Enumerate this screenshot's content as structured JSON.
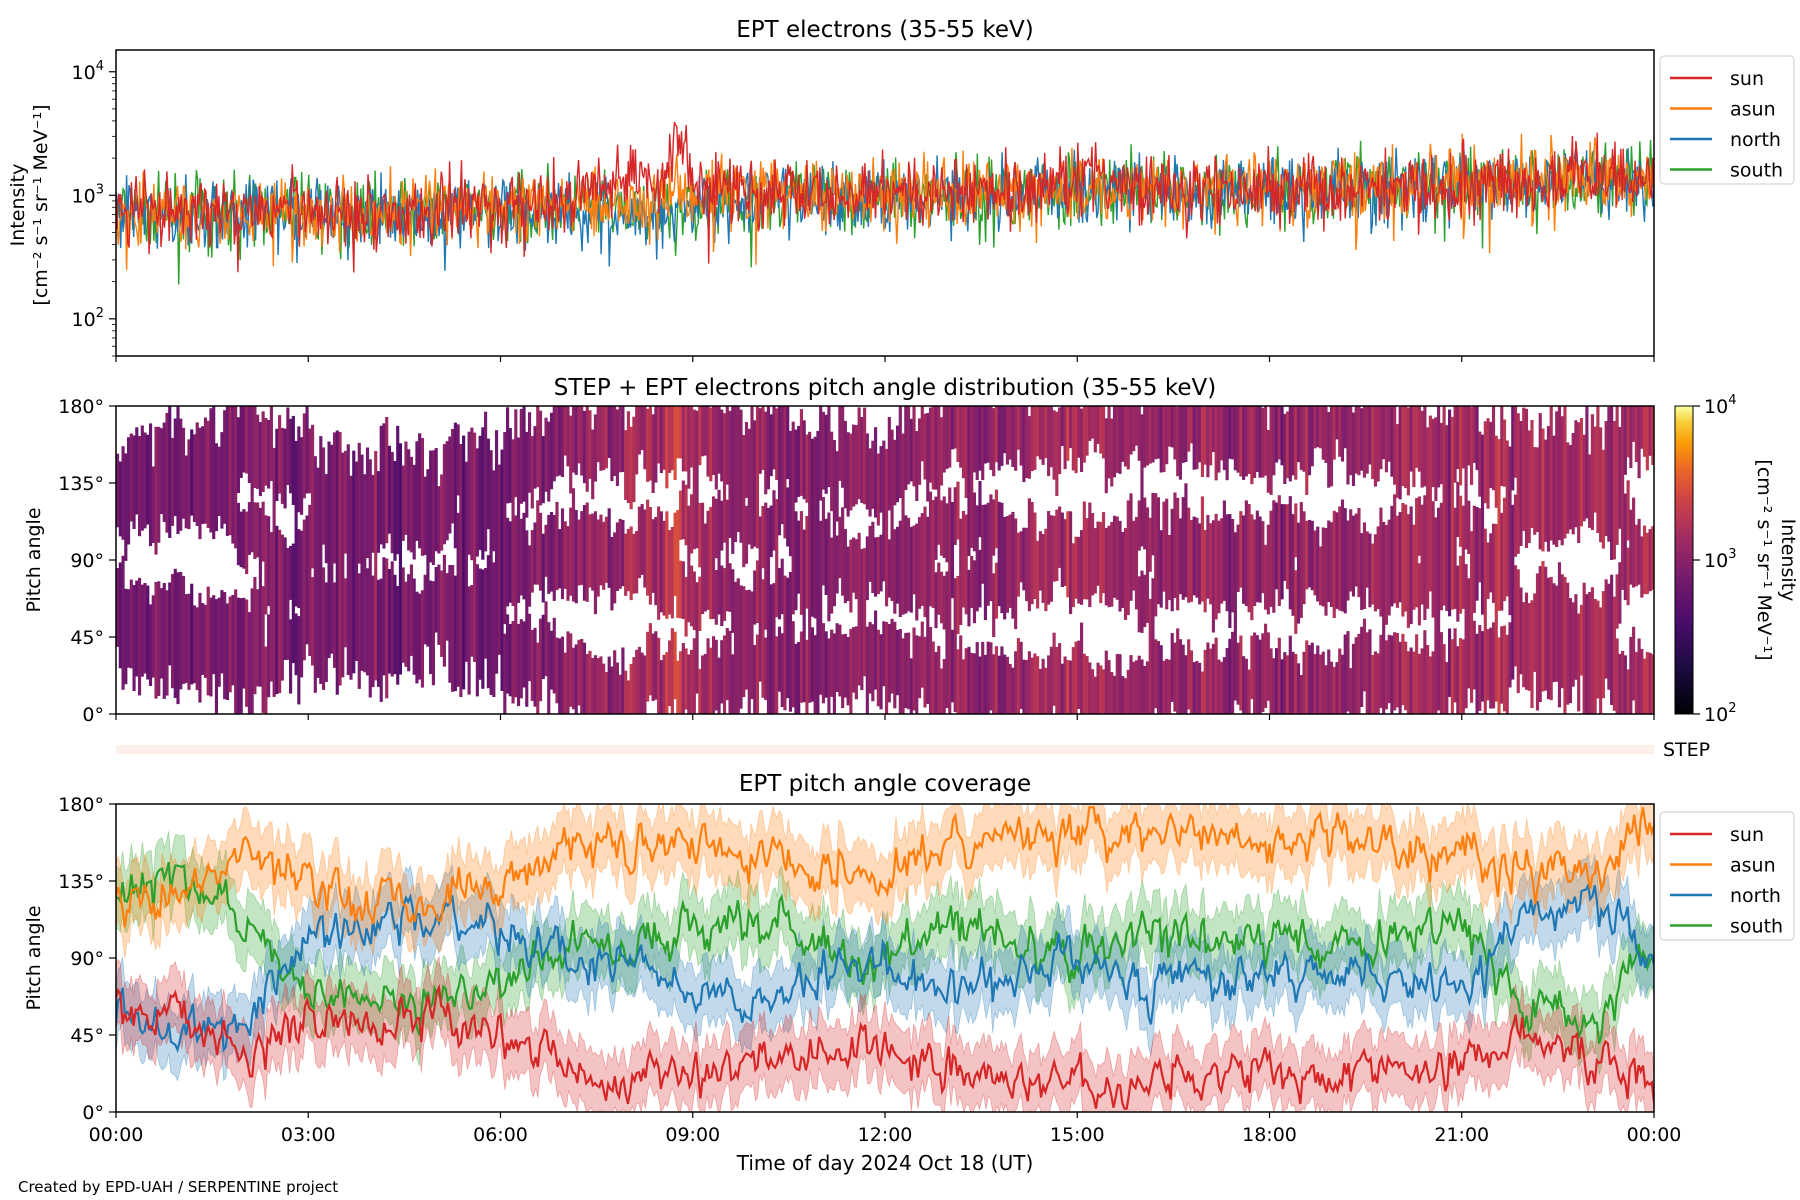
{
  "figure": {
    "footer": "Created by EPD-UAH / SERPENTINE project",
    "xlabel": "Time of day 2024 Oct 18 (UT)",
    "xticks": [
      "00:00",
      "03:00",
      "06:00",
      "09:00",
      "12:00",
      "15:00",
      "18:00",
      "21:00",
      "00:00"
    ]
  },
  "colors": {
    "sun": "#d62728",
    "asun": "#ff7f0e",
    "north": "#1f77b4",
    "south": "#2ca02c"
  },
  "chart_data": [
    {
      "type": "line",
      "title": "EPT electrons (35-55 keV)",
      "ylabel_line1": "Intensity",
      "ylabel_line2": "[cm⁻² s⁻¹ sr⁻¹ MeV⁻¹]",
      "yscale": "log",
      "ylim": [
        50,
        15000
      ],
      "yticks": [
        {
          "value": 100,
          "base": "10",
          "exp": "2"
        },
        {
          "value": 1000,
          "base": "10",
          "exp": "3"
        },
        {
          "value": 10000,
          "base": "10",
          "exp": "4"
        }
      ],
      "xlim_hours": [
        0,
        24
      ],
      "x_hours": [
        0,
        1,
        2,
        3,
        4,
        5,
        6,
        7,
        7.5,
        8,
        8.5,
        8.75,
        9,
        10,
        11,
        12,
        13,
        14,
        14.5,
        15,
        16,
        17,
        18,
        19,
        20,
        21,
        22,
        23,
        24
      ],
      "series": [
        {
          "name": "sun",
          "values": [
            720,
            760,
            780,
            770,
            780,
            790,
            800,
            880,
            1300,
            1500,
            1350,
            2900,
            1250,
            1100,
            1000,
            1020,
            1080,
            1120,
            1200,
            1450,
            1200,
            1120,
            1150,
            1200,
            1250,
            1300,
            1350,
            1400,
            1350
          ]
        },
        {
          "name": "asun",
          "values": [
            700,
            740,
            760,
            760,
            770,
            780,
            790,
            840,
            950,
            980,
            1000,
            1050,
            1050,
            1080,
            980,
            1000,
            1050,
            1080,
            1100,
            1150,
            1150,
            1100,
            1150,
            1180,
            1220,
            1280,
            1320,
            1380,
            1350
          ]
        },
        {
          "name": "north",
          "values": [
            680,
            720,
            740,
            740,
            750,
            760,
            770,
            780,
            720,
            700,
            680,
            720,
            820,
            950,
            950,
            980,
            1020,
            1050,
            1100,
            1120,
            1120,
            1080,
            1100,
            1150,
            1200,
            1250,
            1300,
            1350,
            1300
          ]
        },
        {
          "name": "south",
          "values": [
            690,
            730,
            750,
            750,
            760,
            770,
            780,
            800,
            750,
            720,
            700,
            740,
            850,
            980,
            960,
            1000,
            1040,
            1070,
            1100,
            1130,
            1130,
            1090,
            1120,
            1170,
            1210,
            1260,
            1310,
            1360,
            1320
          ]
        }
      ],
      "legend": "outside-right",
      "legend_entries": [
        "sun",
        "asun",
        "north",
        "south"
      ]
    },
    {
      "type": "heatmap",
      "title": "STEP + EPT electrons pitch angle distribution (35-55 keV)",
      "ylabel": "Pitch angle",
      "yticks": [
        "0°",
        "45°",
        "90°",
        "135°",
        "180°"
      ],
      "ylim_deg": [
        0,
        180
      ],
      "xlim_hours": [
        0,
        24
      ],
      "colorbar": {
        "scale": "log",
        "colormap": "inferno",
        "range": [
          100,
          10000
        ],
        "label_line1": "Intensity",
        "label_line2": "[cm⁻² s⁻¹ sr⁻¹ MeV⁻¹]",
        "ticks": [
          {
            "value": 100,
            "base": "10",
            "exp": "2"
          },
          {
            "value": 1000,
            "base": "10",
            "exp": "3"
          },
          {
            "value": 10000,
            "base": "10",
            "exp": "4"
          }
        ]
      },
      "step_label": "STEP"
    },
    {
      "type": "line",
      "title": "EPT pitch angle coverage",
      "ylabel": "Pitch angle",
      "yticks": [
        "0°",
        "45°",
        "90°",
        "135°",
        "180°"
      ],
      "ylim_deg": [
        0,
        180
      ],
      "xlim_hours": [
        0,
        24
      ],
      "x_hours": [
        0,
        1,
        2,
        3,
        4,
        5,
        6,
        7,
        8,
        9,
        10,
        11,
        12,
        13,
        14,
        15,
        16,
        17,
        18,
        19,
        20,
        21,
        22,
        23,
        24
      ],
      "series": [
        {
          "name": "sun",
          "values": [
            60,
            55,
            30,
            50,
            52,
            58,
            45,
            25,
            20,
            25,
            30,
            35,
            40,
            25,
            15,
            20,
            15,
            20,
            25,
            20,
            25,
            30,
            40,
            35,
            15
          ]
        },
        {
          "name": "asun",
          "values": [
            120,
            125,
            150,
            130,
            128,
            122,
            135,
            155,
            160,
            155,
            150,
            145,
            140,
            155,
            165,
            160,
            165,
            160,
            155,
            160,
            155,
            150,
            140,
            145,
            165
          ]
        },
        {
          "name": "north",
          "values": [
            55,
            45,
            55,
            105,
            110,
            115,
            110,
            90,
            85,
            75,
            60,
            80,
            90,
            70,
            80,
            90,
            75,
            85,
            80,
            85,
            75,
            70,
            110,
            130,
            85
          ]
        },
        {
          "name": "south",
          "values": [
            125,
            140,
            110,
            70,
            65,
            60,
            75,
            95,
            100,
            105,
            115,
            100,
            90,
            110,
            100,
            90,
            105,
            95,
            100,
            95,
            105,
            110,
            70,
            50,
            95
          ]
        }
      ],
      "legend": "outside-right",
      "legend_entries": [
        "sun",
        "asun",
        "north",
        "south"
      ]
    }
  ]
}
